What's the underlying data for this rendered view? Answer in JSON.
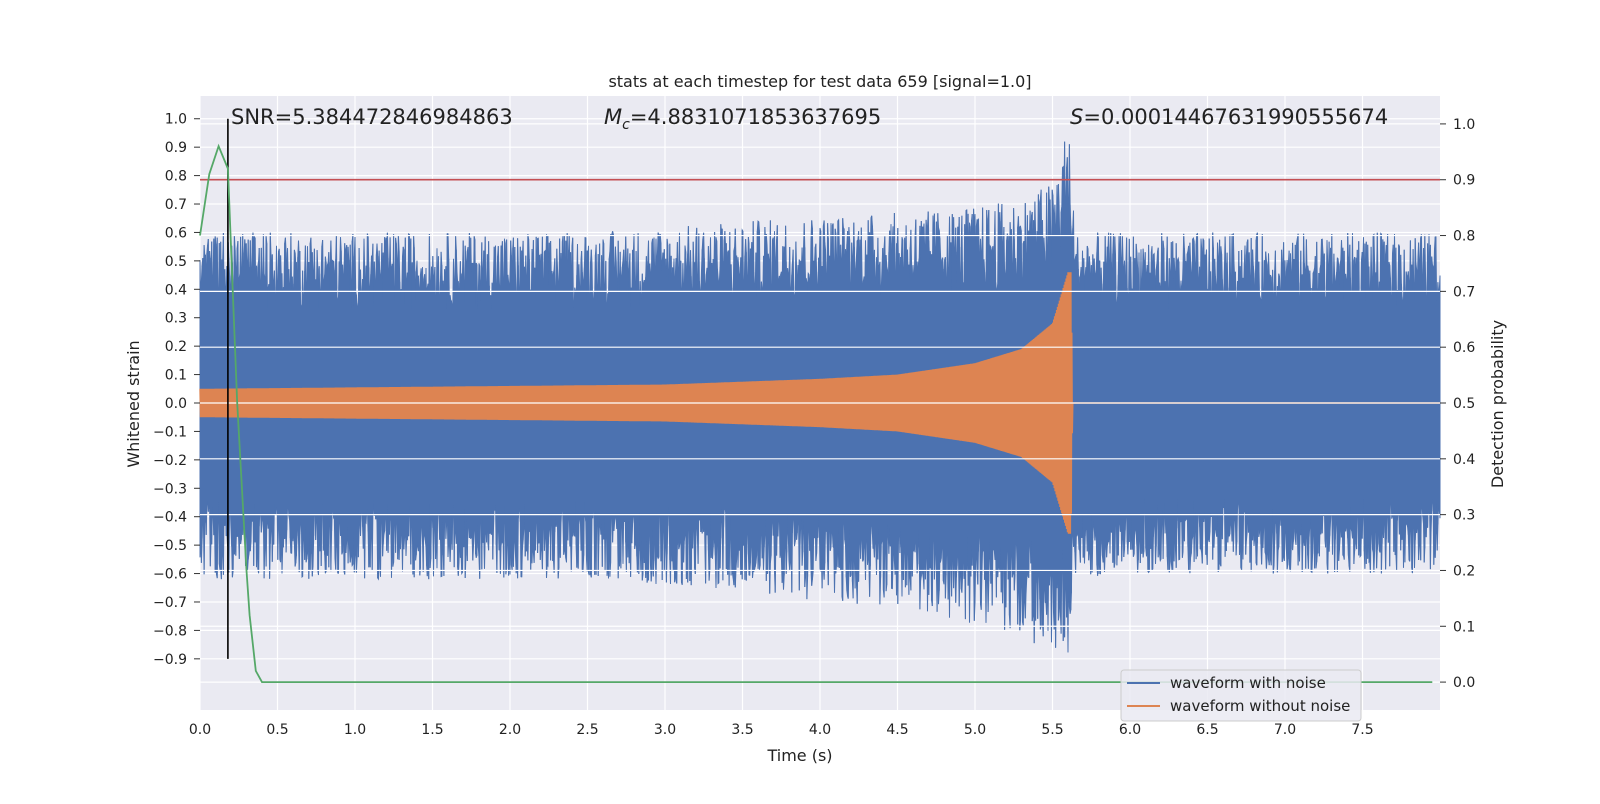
{
  "chart_data": {
    "type": "line",
    "title": "stats at each timestep for test data 659 [signal=1.0]",
    "xlabel": "Time (s)",
    "ylabel": "Whitened strain",
    "y2label": "Detection probability",
    "xlim": [
      0.0,
      8.0
    ],
    "ylim": [
      -1.08,
      1.08
    ],
    "y2lim": [
      -0.05,
      1.05
    ],
    "grid": true,
    "legend_position": "lower-right",
    "xticks": [
      "0.0",
      "0.5",
      "1.0",
      "1.5",
      "2.0",
      "2.5",
      "3.0",
      "3.5",
      "4.0",
      "4.5",
      "5.0",
      "5.5",
      "6.0",
      "6.5",
      "7.0",
      "7.5"
    ],
    "yticks": [
      "1.0",
      "0.9",
      "0.8",
      "0.7",
      "0.6",
      "0.5",
      "0.4",
      "0.3",
      "0.2",
      "0.1",
      "0.0",
      "−0.1",
      "−0.2",
      "−0.3",
      "−0.4",
      "−0.5",
      "−0.6",
      "−0.7",
      "−0.8",
      "−0.9"
    ],
    "y2ticks": [
      "1.0",
      "0.9",
      "0.8",
      "0.7",
      "0.6",
      "0.5",
      "0.4",
      "0.3",
      "0.2",
      "0.1",
      "0.0"
    ],
    "annotations": {
      "snr": "SNR=5.384472846984863",
      "mc_symbol": "M",
      "mc_sub": "c",
      "mc_value": "=4.8831071853637695",
      "s_symbol": "S",
      "s_value": "=0.00014467631990555674"
    },
    "markers": {
      "vertical_line_x": 0.18,
      "threshold_probability": 0.9,
      "merger_time": 5.62
    },
    "series": [
      {
        "name": "waveform with noise",
        "color": "#4c72b0",
        "axis": "left",
        "envelope_time": [
          0.0,
          0.5,
          1.0,
          1.5,
          2.0,
          2.5,
          3.0,
          3.5,
          4.0,
          4.5,
          5.0,
          5.3,
          5.5,
          5.6,
          5.65,
          6.0,
          6.5,
          7.0,
          7.5,
          8.0
        ],
        "envelope_upper": [
          0.6,
          0.6,
          0.6,
          0.6,
          0.6,
          0.6,
          0.62,
          0.64,
          0.66,
          0.67,
          0.69,
          0.72,
          0.78,
          1.0,
          0.6,
          0.6,
          0.6,
          0.6,
          0.6,
          0.6
        ],
        "envelope_lower": [
          -0.62,
          -0.62,
          -0.62,
          -0.62,
          -0.62,
          -0.62,
          -0.64,
          -0.66,
          -0.7,
          -0.72,
          -0.78,
          -0.82,
          -0.88,
          -0.9,
          -0.62,
          -0.6,
          -0.6,
          -0.6,
          -0.6,
          -0.6
        ]
      },
      {
        "name": "waveform without noise",
        "color": "#dd8452",
        "axis": "left",
        "envelope_time": [
          0.0,
          1.0,
          2.0,
          3.0,
          4.0,
          4.5,
          5.0,
          5.3,
          5.5,
          5.6,
          5.62,
          5.63,
          8.0
        ],
        "envelope_amplitude": [
          0.05,
          0.055,
          0.06,
          0.065,
          0.085,
          0.1,
          0.14,
          0.19,
          0.28,
          0.46,
          0.46,
          0.0,
          0.0
        ]
      },
      {
        "name": "detection probability",
        "color": "#55a868",
        "axis": "right",
        "x": [
          0.0,
          0.06,
          0.12,
          0.18,
          0.24,
          0.3,
          0.32,
          0.36,
          0.4,
          0.6,
          1.0,
          2.0,
          3.0,
          4.0,
          5.0,
          6.0,
          7.0,
          7.95
        ],
        "y": [
          0.8,
          0.91,
          0.96,
          0.92,
          0.5,
          0.2,
          0.12,
          0.02,
          0.0,
          0.0,
          0.0,
          0.0,
          0.0,
          0.0,
          0.0,
          0.0,
          0.0,
          0.0
        ]
      }
    ],
    "threshold_color": "#c44e52",
    "vline_color": "#000000"
  }
}
